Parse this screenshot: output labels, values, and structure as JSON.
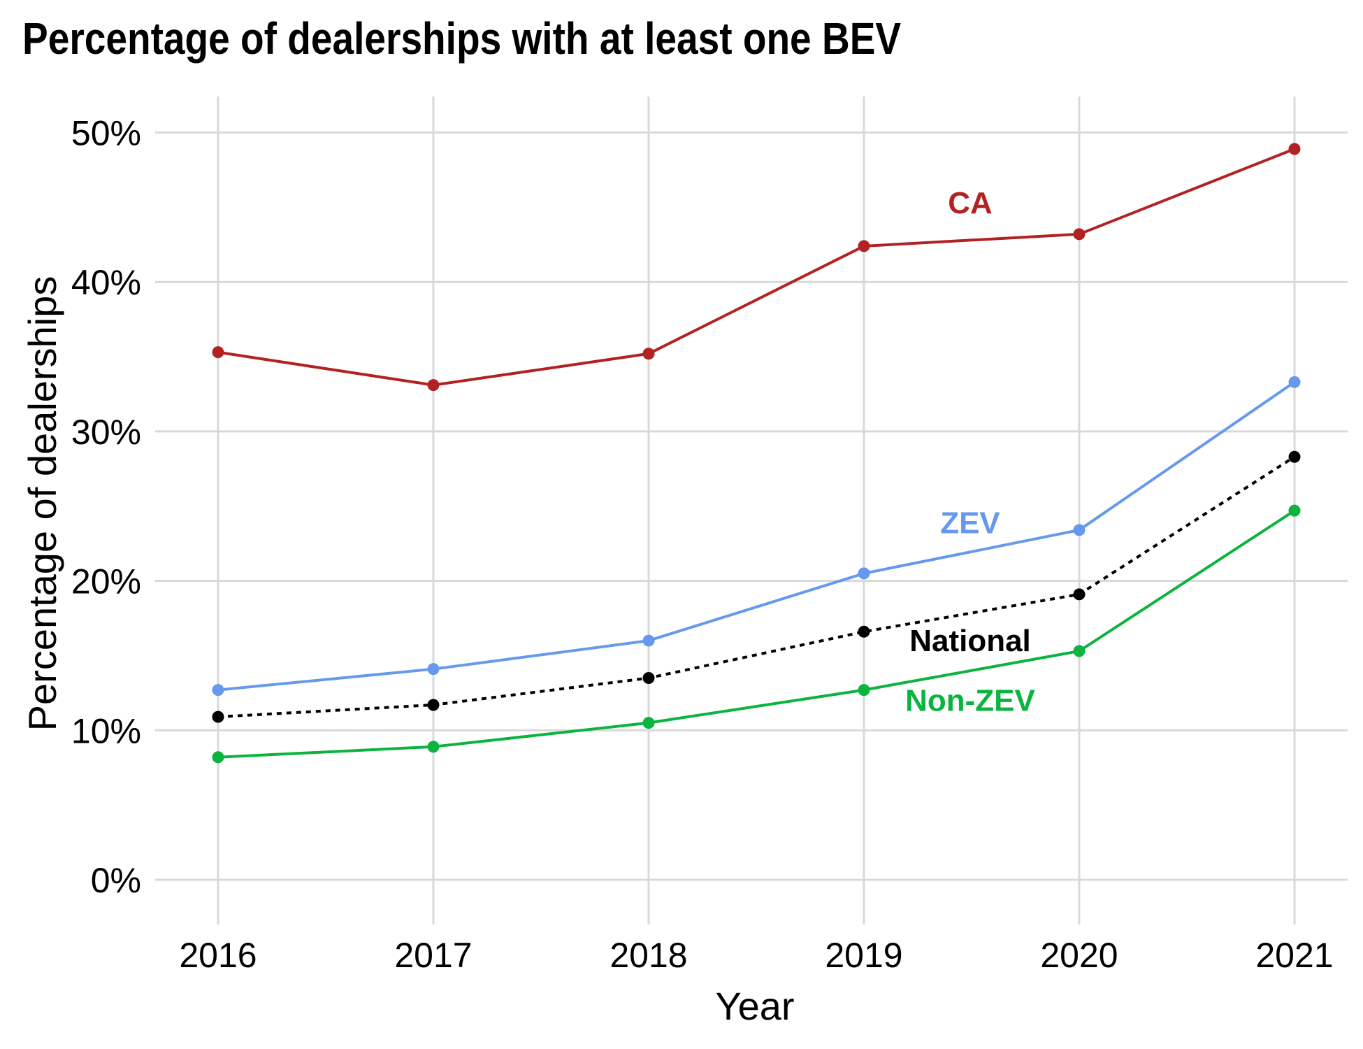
{
  "chart_data": {
    "type": "line",
    "title": "Percentage of dealerships with at least one BEV",
    "xlabel": "Year",
    "ylabel": "Percentage of dealerships",
    "x": [
      "2016",
      "2017",
      "2018",
      "2019",
      "2020",
      "2021"
    ],
    "ylim": [
      0,
      50
    ],
    "y_ticks": [
      "0%",
      "10%",
      "20%",
      "30%",
      "40%",
      "50%"
    ],
    "grid": true,
    "legend": "direct labels on lines",
    "series": [
      {
        "name": "CA",
        "color": "#b22222",
        "dash": "solid",
        "values": [
          35.3,
          33.1,
          35.2,
          42.4,
          43.2,
          48.9
        ]
      },
      {
        "name": "ZEV",
        "color": "#6699ee",
        "dash": "solid",
        "values": [
          12.7,
          14.1,
          16.0,
          20.5,
          23.4,
          33.3
        ]
      },
      {
        "name": "National",
        "color": "#000000",
        "dash": "dotted",
        "values": [
          10.9,
          11.7,
          13.5,
          16.6,
          19.1,
          28.3
        ]
      },
      {
        "name": "Non-ZEV",
        "color": "#0bb33f",
        "dash": "solid",
        "values": [
          8.2,
          8.9,
          10.5,
          12.7,
          15.3,
          24.7
        ]
      }
    ]
  }
}
